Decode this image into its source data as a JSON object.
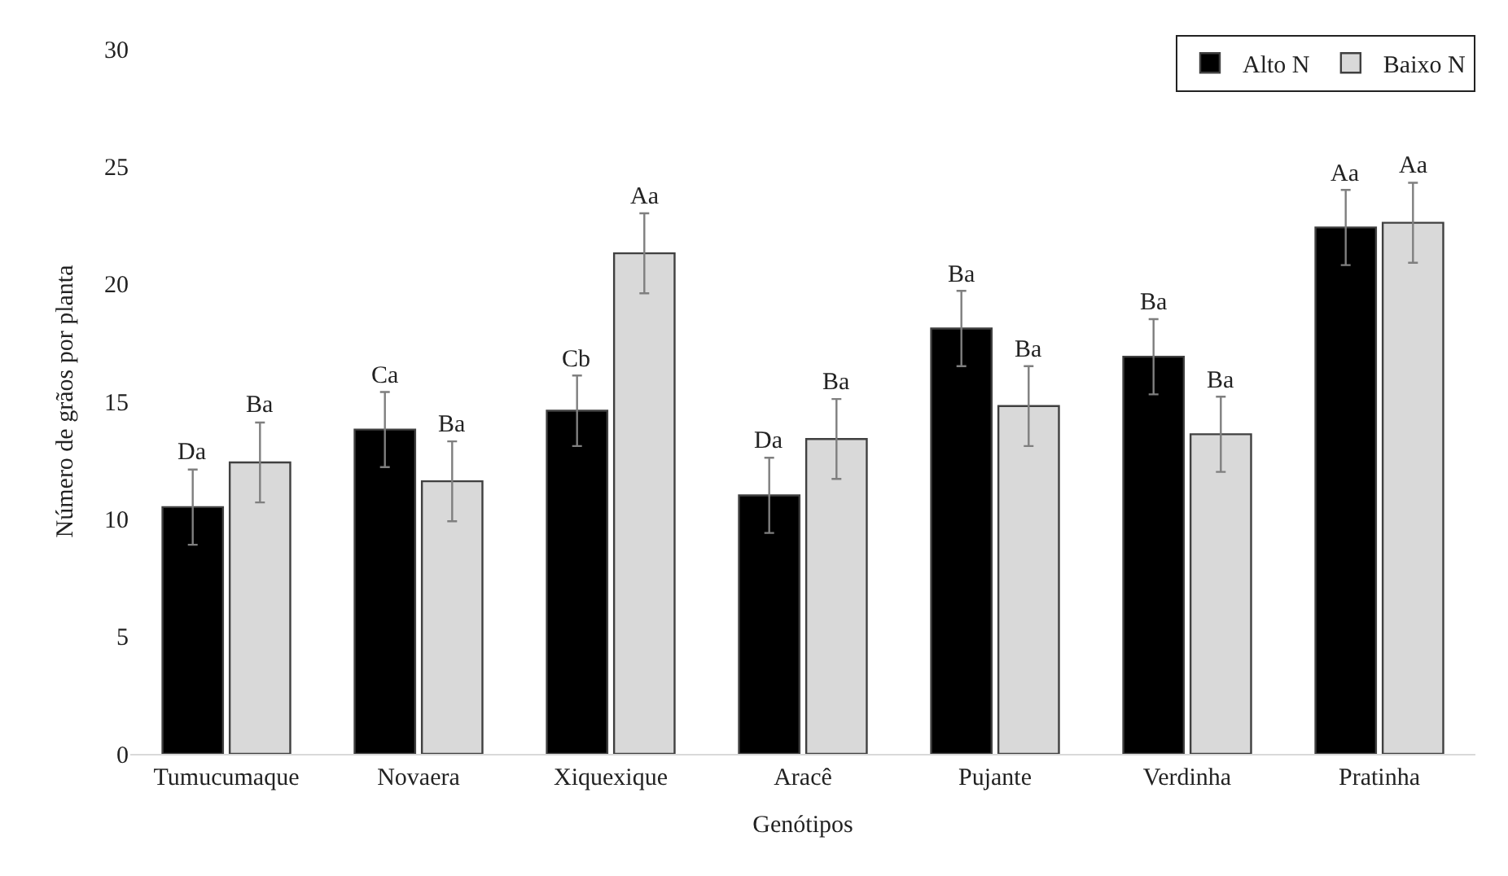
{
  "chart_data": {
    "type": "bar",
    "xlabel": "Genótipos",
    "ylabel": "Número de grãos por planta",
    "categories": [
      "Tumucumaque",
      "Novaera",
      "Xiquexique",
      "Aracê",
      "Pujante",
      "Verdinha",
      "Pratinha"
    ],
    "series": [
      {
        "name": "Alto N",
        "color": "#000000",
        "values": [
          10.5,
          13.8,
          14.6,
          11.0,
          18.1,
          16.9,
          22.4
        ],
        "errors": [
          1.6,
          1.6,
          1.5,
          1.6,
          1.6,
          1.6,
          1.6
        ],
        "value_labels": [
          "Da",
          "Ca",
          "Cb",
          "Da",
          "Ba",
          "Ba",
          "Aa"
        ]
      },
      {
        "name": "Baixo N",
        "color": "#d9d9d9",
        "values": [
          12.4,
          11.6,
          21.3,
          13.4,
          14.8,
          13.6,
          22.6
        ],
        "errors": [
          1.7,
          1.7,
          1.7,
          1.7,
          1.7,
          1.6,
          1.7
        ],
        "value_labels": [
          "Ba",
          "Ba",
          "Aa",
          "Ba",
          "Ba",
          "Ba",
          "Aa"
        ]
      }
    ],
    "ylim": [
      0,
      30
    ],
    "yticks": [
      0,
      5,
      10,
      15,
      20,
      25,
      30
    ],
    "legend": "top right"
  }
}
